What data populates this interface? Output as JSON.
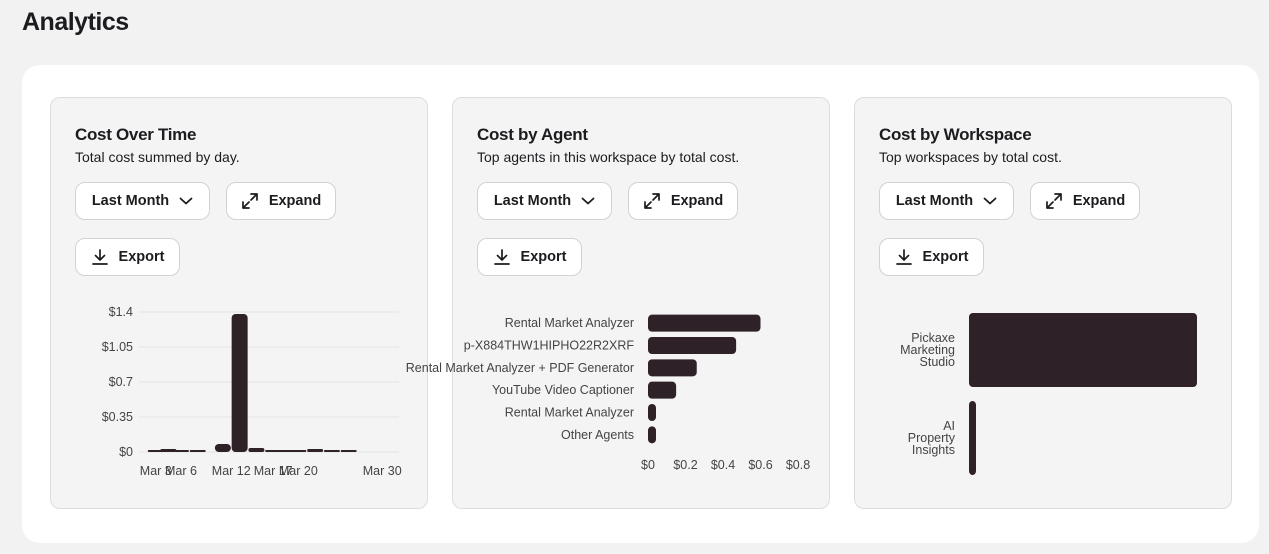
{
  "page": {
    "title": "Analytics"
  },
  "colors": {
    "bar": "#2e2128",
    "grid": "#e3e3e3"
  },
  "cards": [
    {
      "title": "Cost Over Time",
      "subtitle": "Total cost summed by day.",
      "range_label": "Last Month",
      "expand_label": "Expand",
      "export_label": "Export"
    },
    {
      "title": "Cost by Agent",
      "subtitle": "Top agents in this workspace by total cost.",
      "range_label": "Last Month",
      "expand_label": "Expand",
      "export_label": "Export"
    },
    {
      "title": "Cost by Workspace",
      "subtitle": "Top workspaces by total cost.",
      "range_label": "Last Month",
      "expand_label": "Expand",
      "export_label": "Export"
    }
  ],
  "icons": {
    "dropdown": "chevron-down-icon",
    "expand": "expand-arrows-icon",
    "export": "download-icon"
  },
  "chart_data": [
    {
      "type": "bar",
      "orientation": "vertical",
      "ylim": [
        0,
        1.4
      ],
      "y_ticks": [
        "$0",
        "$0.35",
        "$0.7",
        "$1.05",
        "$1.4"
      ],
      "y_tick_values": [
        0,
        0.35,
        0.7,
        1.05,
        1.4
      ],
      "x_tick_labels": [
        "Mar 3",
        "Mar 6",
        "Mar 12",
        "Mar 17",
        "Mar 20",
        "Mar 30"
      ],
      "x_tick_positions": [
        3,
        6,
        12,
        17,
        20,
        30
      ],
      "xlim": [
        1,
        32
      ],
      "x": [
        3,
        4.5,
        6,
        8,
        11,
        13,
        15,
        17,
        18.5,
        20,
        22,
        24,
        26
      ],
      "values": [
        0.01,
        0.03,
        0.005,
        0.0,
        0.08,
        1.38,
        0.04,
        0.01,
        0.005,
        0.003,
        0.03,
        0.005,
        0.0
      ],
      "grid": true
    },
    {
      "type": "bar",
      "orientation": "horizontal",
      "categories": [
        "Rental Market Analyzer",
        "p-X884THW1HIPHO22R2XRF",
        "Rental Market Analyzer + PDF Generator",
        "YouTube Video Captioner",
        "Rental Market Analyzer",
        "Other Agents"
      ],
      "values": [
        0.6,
        0.47,
        0.26,
        0.15,
        0.04,
        0.04
      ],
      "xlim": [
        0,
        0.8
      ],
      "x_ticks": [
        "$0",
        "$0.2",
        "$0.4",
        "$0.6",
        "$0.8"
      ],
      "x_tick_values": [
        0,
        0.2,
        0.4,
        0.6,
        0.8
      ]
    },
    {
      "type": "bar",
      "orientation": "horizontal",
      "categories": [
        "Pickaxe Marketing Studio",
        "AI Property Insights"
      ],
      "values": [
        1.0,
        0.03
      ],
      "xlim": [
        0,
        1.0
      ]
    }
  ]
}
